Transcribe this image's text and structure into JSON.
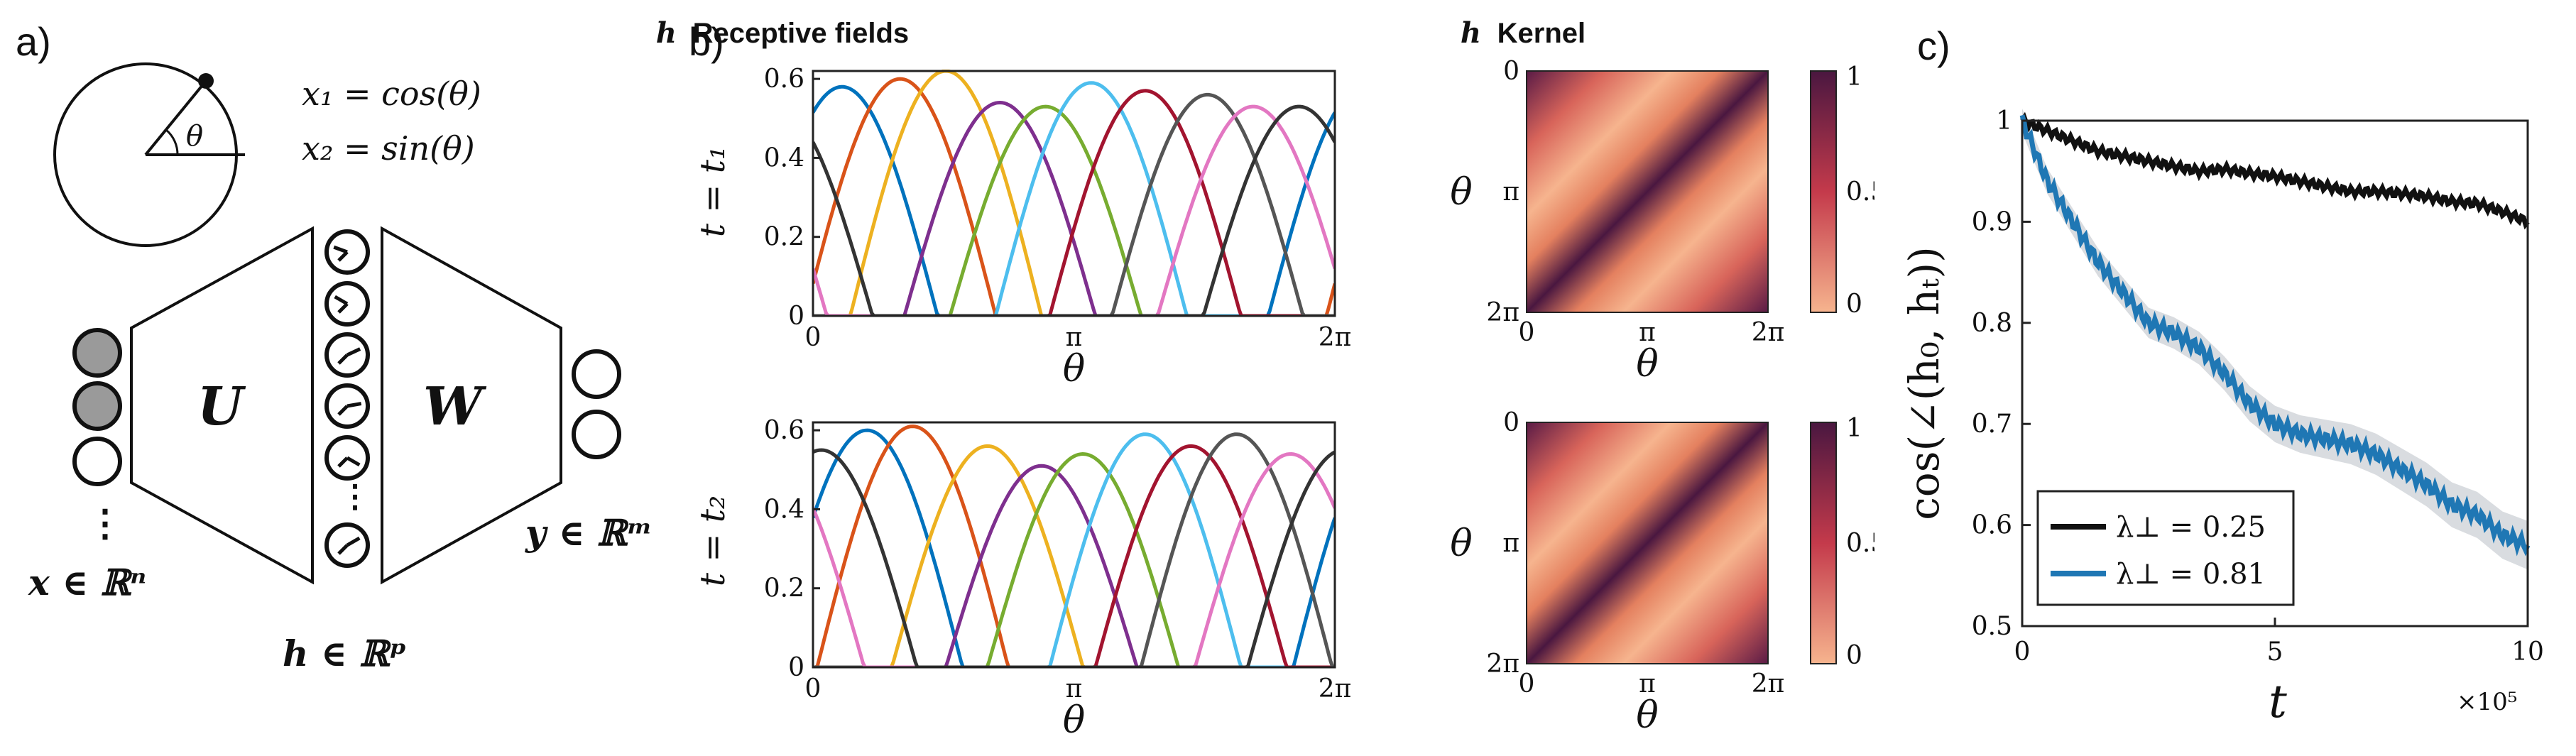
{
  "panels": {
    "a": "a)",
    "b": "b)",
    "c": "c)"
  },
  "diagram": {
    "theta_symbol": "θ",
    "eq1": "x₁ = cos(θ)",
    "eq2": "x₂ = sin(θ)",
    "U_label": "U",
    "W_label": "W",
    "x_dots": "⋮",
    "x_label": "x ∈ ℝⁿ",
    "h_label": "h ∈ ℝᵖ",
    "y_label": "y ∈ ℝᵐ"
  },
  "receptive_fields": {
    "title_h": "h",
    "title_rest": "Receptive fields",
    "xlabel": "θ",
    "xticks": [
      "0",
      "π",
      "2π"
    ],
    "yticks": [
      "0",
      "0.2",
      "0.4",
      "0.6"
    ],
    "row_labels": [
      "t = t₁",
      "t = t₂"
    ]
  },
  "kernel": {
    "title_h": "h",
    "title_rest": "Kernel",
    "xlabel": "θ",
    "ylabel": "θ",
    "xticks": [
      "0",
      "π",
      "2π"
    ],
    "yticks": [
      "0",
      "π",
      "2π"
    ],
    "colorbar_ticks": [
      "0",
      "0.5",
      "1"
    ]
  },
  "colors": {
    "matlab": [
      "#0072BD",
      "#D95319",
      "#EDB120",
      "#7E2F8E",
      "#77AC30",
      "#4DBEEE",
      "#A2142F",
      "#555555",
      "#E377C2",
      "#333333"
    ],
    "heat_low": "#F6B48E",
    "heat_mid": "#C43A4B",
    "heat_high": "#4A1740",
    "black_series": "#111111",
    "blue_series": "#1F77B4",
    "band": "#C9CDD3"
  },
  "chart_data": [
    {
      "type": "line",
      "title": "h Receptive fields",
      "row_label": "t = t₁",
      "xlabel": "θ",
      "xlim": [
        0,
        6.283
      ],
      "ylim": [
        0,
        0.62
      ],
      "series": [
        {
          "peak_theta": 0.35,
          "amplitude": 0.58
        },
        {
          "peak_theta": 1.05,
          "amplitude": 0.6
        },
        {
          "peak_theta": 1.6,
          "amplitude": 0.62
        },
        {
          "peak_theta": 2.25,
          "amplitude": 0.54
        },
        {
          "peak_theta": 2.8,
          "amplitude": 0.53
        },
        {
          "peak_theta": 3.35,
          "amplitude": 0.59
        },
        {
          "peak_theta": 4.0,
          "amplitude": 0.57
        },
        {
          "peak_theta": 4.75,
          "amplitude": 0.56
        },
        {
          "peak_theta": 5.3,
          "amplitude": 0.53
        },
        {
          "peak_theta": 5.85,
          "amplitude": 0.53
        }
      ]
    },
    {
      "type": "line",
      "title": "",
      "row_label": "t = t₂",
      "xlabel": "θ",
      "xlim": [
        0,
        6.283
      ],
      "ylim": [
        0,
        0.62
      ],
      "series": [
        {
          "peak_theta": 0.65,
          "amplitude": 0.6
        },
        {
          "peak_theta": 1.2,
          "amplitude": 0.61
        },
        {
          "peak_theta": 2.1,
          "amplitude": 0.56
        },
        {
          "peak_theta": 2.75,
          "amplitude": 0.51
        },
        {
          "peak_theta": 3.25,
          "amplitude": 0.54
        },
        {
          "peak_theta": 4.0,
          "amplitude": 0.59
        },
        {
          "peak_theta": 4.55,
          "amplitude": 0.56
        },
        {
          "peak_theta": 5.1,
          "amplitude": 0.59
        },
        {
          "peak_theta": 5.75,
          "amplitude": 0.54
        },
        {
          "peak_theta": 0.1,
          "amplitude": 0.55
        }
      ]
    },
    {
      "type": "heatmap",
      "title": "h Kernel",
      "xlabel": "θ",
      "ylabel": "θ",
      "zlim": [
        0,
        1
      ]
    },
    {
      "type": "line",
      "title": "",
      "xlabel": "t",
      "ylabel": "cos(∠(h₀, hₜ))",
      "x_multiplier_label": "×10⁵",
      "xlim": [
        0,
        10
      ],
      "ylim": [
        0.5,
        1
      ],
      "xticks": [
        "0",
        "5",
        "10"
      ],
      "yticks": [
        "0.5",
        "0.6",
        "0.7",
        "0.8",
        "0.9",
        "1"
      ],
      "legend_position": "bottom-left",
      "x": [
        0,
        0.5,
        1,
        1.5,
        2,
        2.5,
        3,
        3.5,
        4,
        4.5,
        5,
        5.5,
        6,
        6.5,
        7,
        7.5,
        8,
        8.5,
        9,
        9.5,
        10
      ],
      "series": [
        {
          "name": "λ⊥ = 0.25",
          "values": [
            1.0,
            0.99,
            0.98,
            0.97,
            0.965,
            0.96,
            0.955,
            0.95,
            0.952,
            0.948,
            0.945,
            0.94,
            0.935,
            0.93,
            0.93,
            0.928,
            0.925,
            0.92,
            0.918,
            0.91,
            0.9
          ]
        },
        {
          "name": "λ⊥ = 0.81",
          "values": [
            1.0,
            0.94,
            0.9,
            0.86,
            0.83,
            0.8,
            0.79,
            0.775,
            0.75,
            0.72,
            0.7,
            0.69,
            0.685,
            0.68,
            0.67,
            0.655,
            0.64,
            0.62,
            0.61,
            0.59,
            0.58
          ]
        }
      ]
    }
  ]
}
